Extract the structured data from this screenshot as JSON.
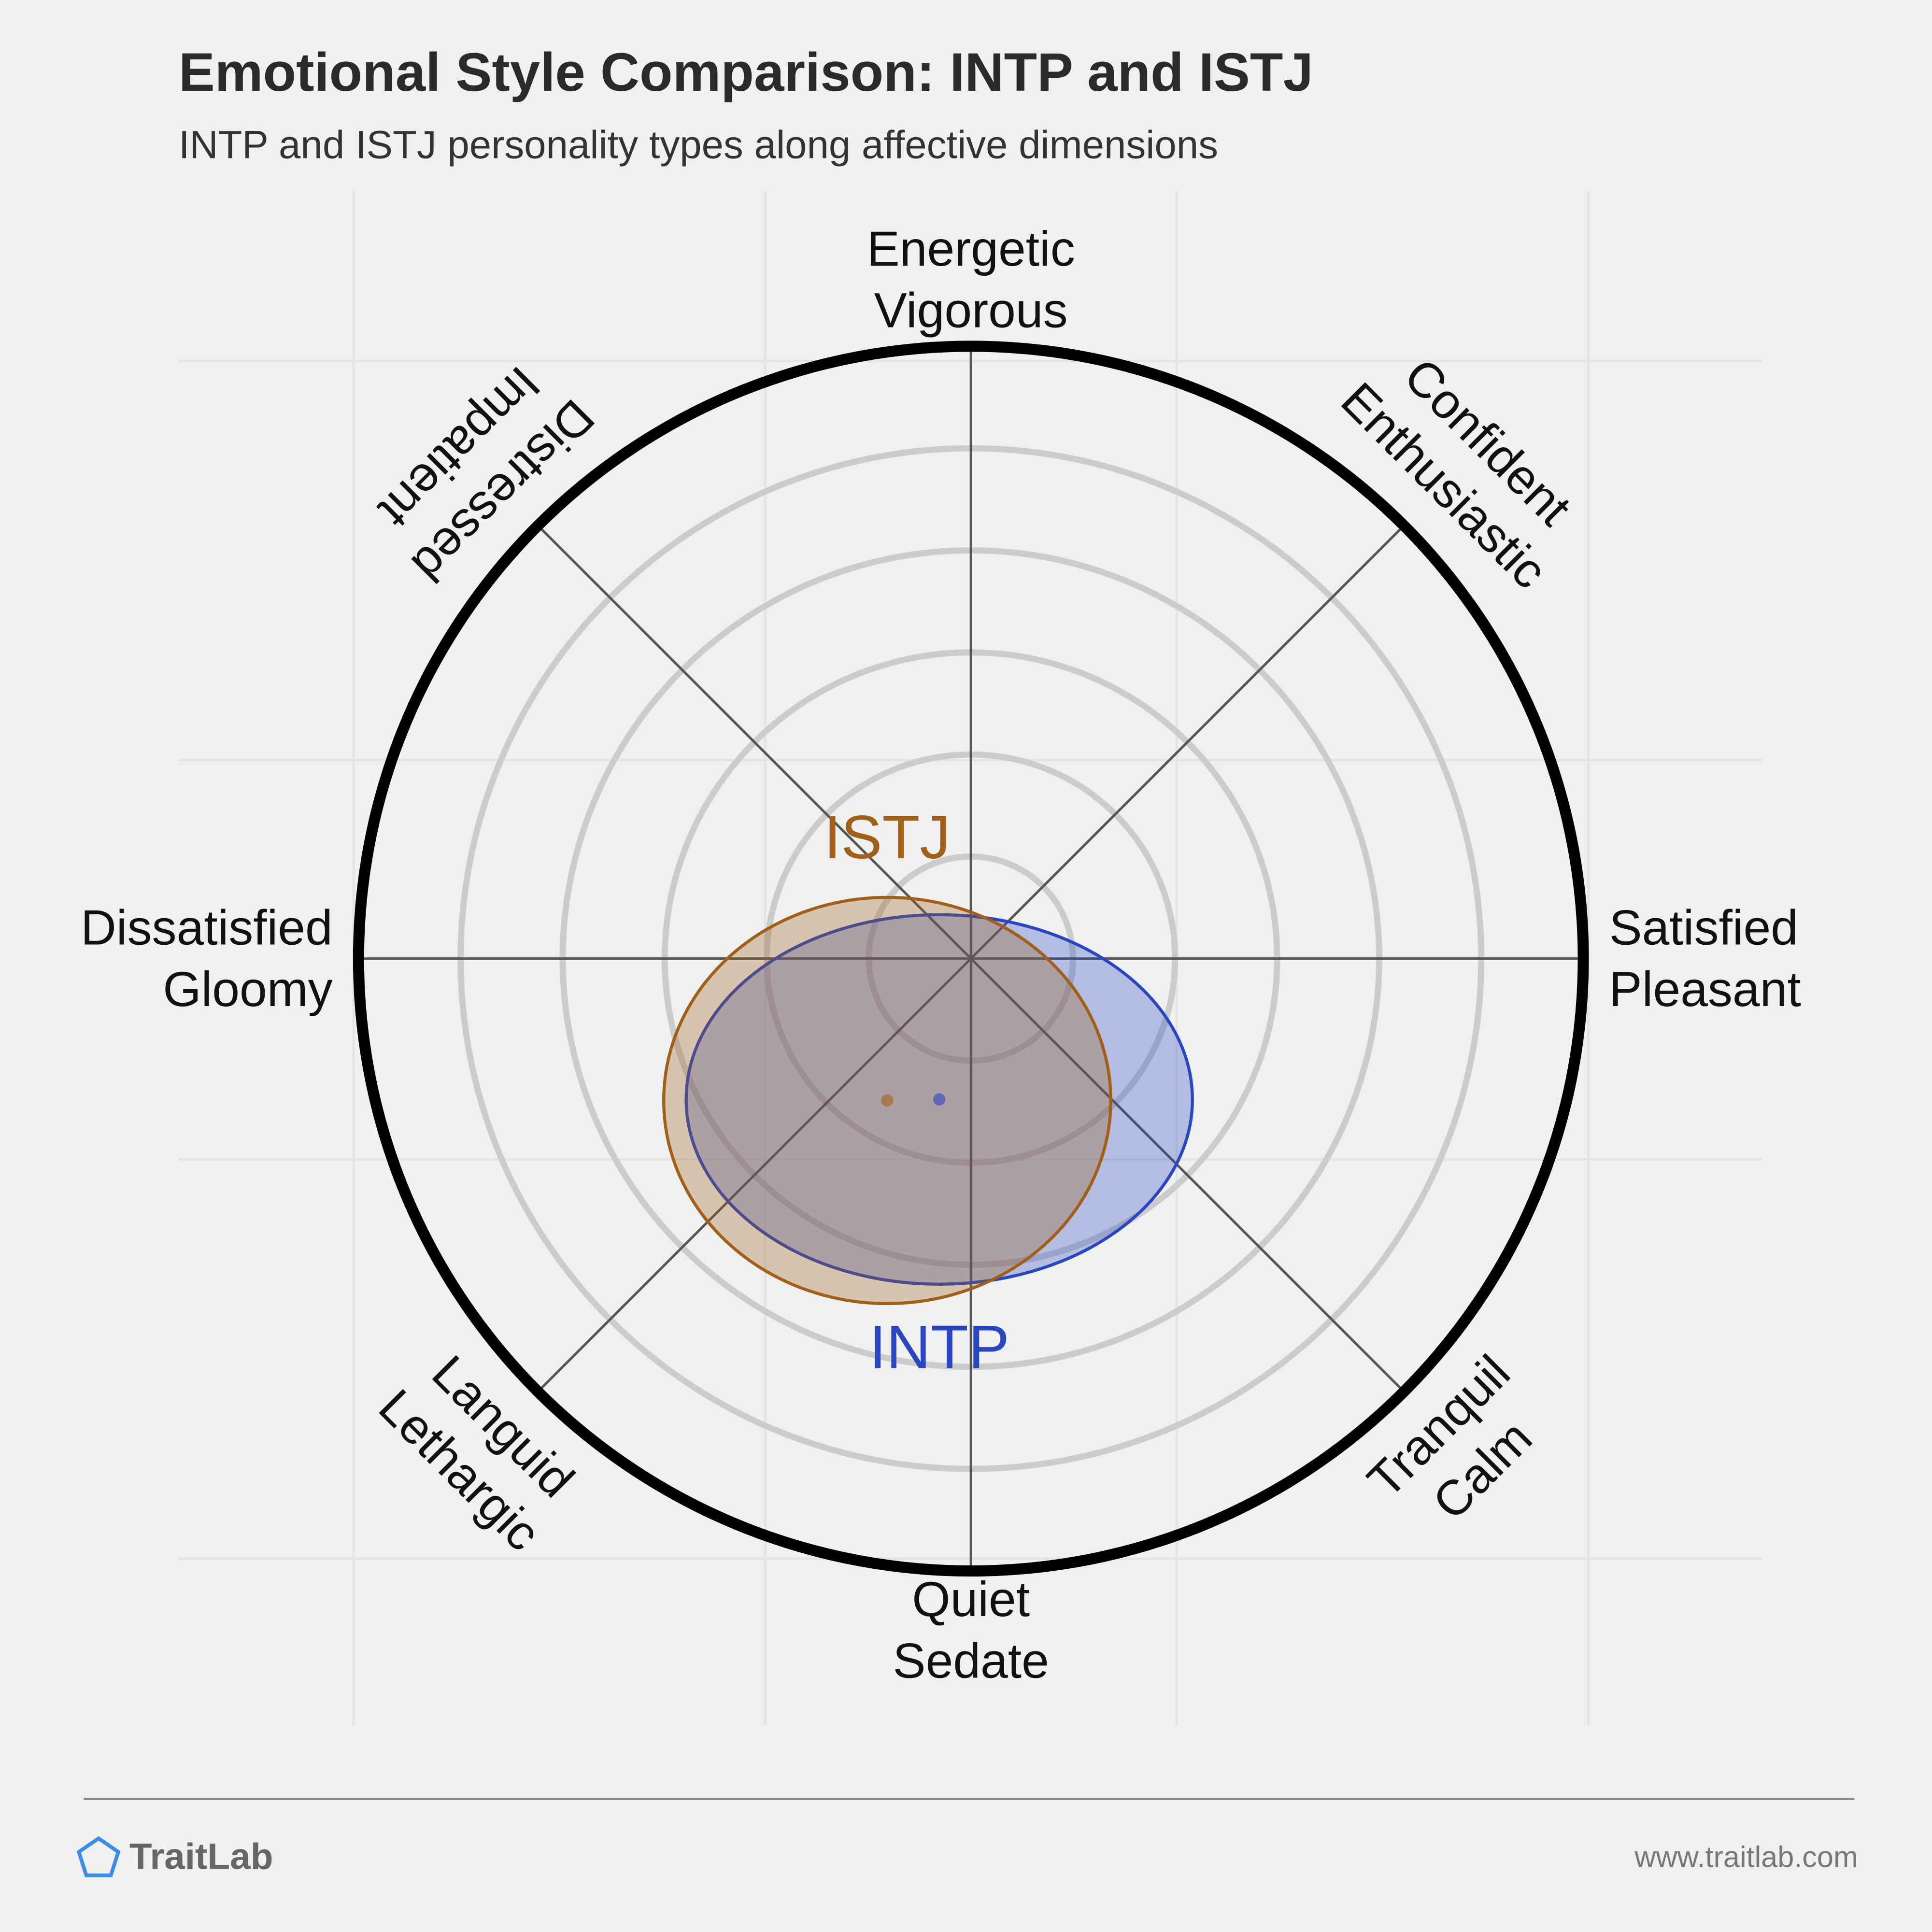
{
  "chart_data": {
    "type": "circumplex",
    "title": "Emotional Style Comparison: INTP and ISTJ",
    "subtitle": "INTP and ISTJ personality types along affective dimensions",
    "axes": [
      [
        "Energetic",
        "Vigorous"
      ],
      [
        "Confident",
        "Enthusiastic"
      ],
      [
        "Satisfied",
        "Pleasant"
      ],
      [
        "Tranquil",
        "Calm"
      ],
      [
        "Quiet",
        "Sedate"
      ],
      [
        "Languid",
        "Lethargic"
      ],
      [
        "Dissatisfied",
        "Gloomy"
      ],
      [
        "Distressed",
        "Impatient"
      ]
    ],
    "rlim": [
      0,
      6
    ],
    "rticks": [
      1,
      2,
      3,
      4,
      5
    ],
    "series": [
      {
        "name": "INTP",
        "color": "#2a46c0",
        "x": -0.31,
        "y": -1.38,
        "rx": 2.48,
        "ry": 1.81
      },
      {
        "name": "ISTJ",
        "color": "#a0601a",
        "x": -0.82,
        "y": -1.39,
        "rx": 2.19,
        "ry": 1.99
      }
    ]
  },
  "footer": {
    "brand": "TraitLab",
    "url": "www.traitlab.com"
  }
}
